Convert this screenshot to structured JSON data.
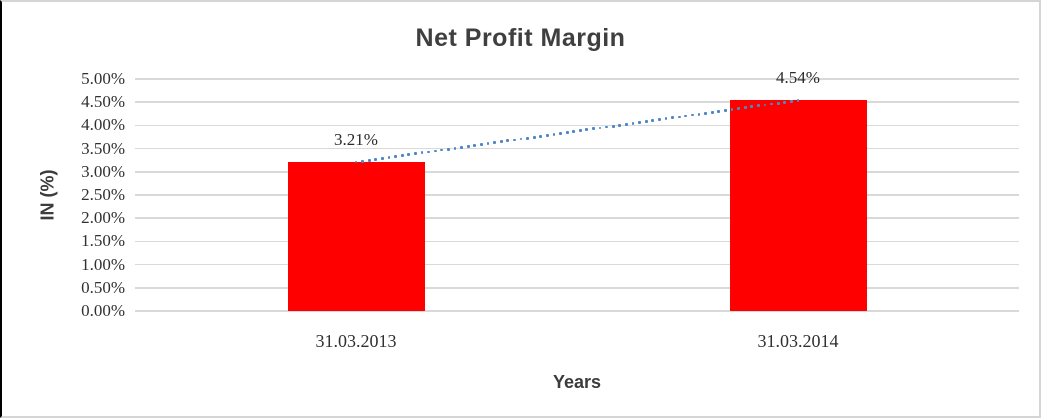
{
  "chart_data": {
    "type": "bar",
    "title": "Net Profit Margin",
    "xlabel": "Years",
    "ylabel": "IN (%)",
    "categories": [
      "31.03.2013",
      "31.03.2014"
    ],
    "values": [
      3.21,
      4.54
    ],
    "data_labels": [
      "3.21%",
      "4.54%"
    ],
    "unit": "percent",
    "ylim": [
      0,
      5
    ],
    "ytick_values": [
      0,
      0.5,
      1,
      1.5,
      2,
      2.5,
      3,
      3.5,
      4,
      4.5,
      5
    ],
    "ytick_labels": [
      "0.00%",
      "0.50%",
      "1.00%",
      "1.50%",
      "2.00%",
      "2.50%",
      "3.00%",
      "3.50%",
      "4.00%",
      "4.50%",
      "5.00%"
    ],
    "grid": "horizontal",
    "legend": "none",
    "colors": {
      "bar": "#ff0000",
      "gridline": "#d9d9d9",
      "trendline": "#4e87c7",
      "title_text": "#3f3f3f",
      "label_text": "#303030"
    },
    "trendline": {
      "type": "linear",
      "style": "dotted",
      "color": "#4e87c7",
      "connects": [
        "top of 31.03.2013 bar",
        "top of 31.03.2014 bar"
      ]
    }
  }
}
